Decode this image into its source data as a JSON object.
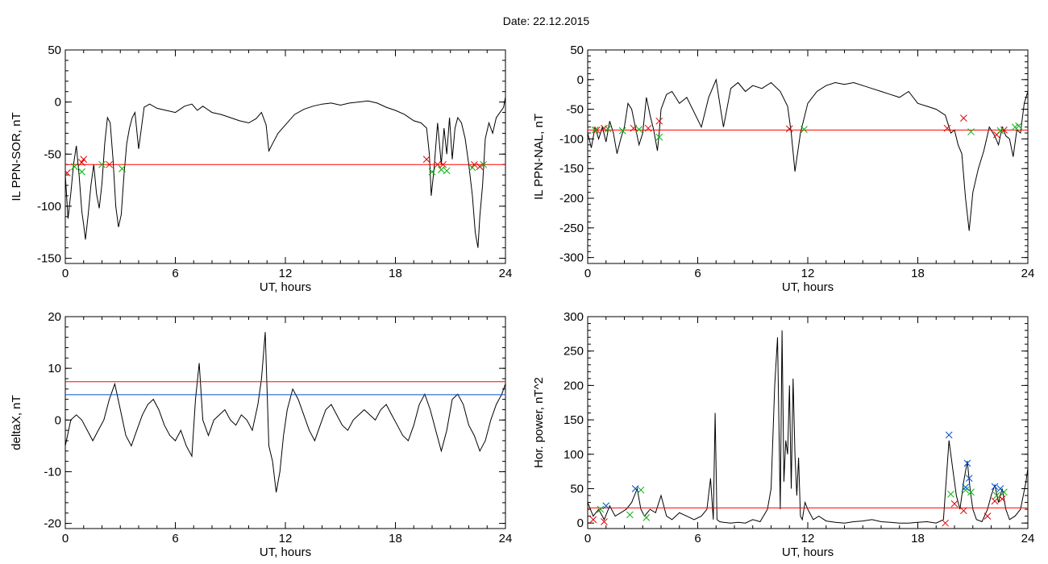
{
  "title": "Date:  22.12.2015",
  "colors": {
    "trace": "#000000",
    "threshold": "#ff0000",
    "secondary": "#0050d0",
    "cross_red": "#e00000",
    "cross_green": "#00b000",
    "cross_blue": "#0050d0"
  },
  "chart_data": [
    {
      "type": "line",
      "ylabel": "IL PPN-SOR, nT",
      "xlabel": "UT, hours",
      "xlim": [
        0,
        24
      ],
      "ylim": [
        -155,
        50
      ],
      "xticks": [
        0,
        6,
        12,
        18,
        24
      ],
      "yticks": [
        50,
        0,
        -50,
        -100,
        -150
      ],
      "series": [
        {
          "role": "trace",
          "x": [
            0,
            0.15,
            0.3,
            0.45,
            0.6,
            0.75,
            0.9,
            1.0,
            1.1,
            1.25,
            1.4,
            1.55,
            1.7,
            1.85,
            2.0,
            2.15,
            2.3,
            2.45,
            2.6,
            2.75,
            2.9,
            3.05,
            3.2,
            3.35,
            3.5,
            3.65,
            3.8,
            4.0,
            4.3,
            4.6,
            5.0,
            5.5,
            6.0,
            6.5,
            6.9,
            7.2,
            7.5,
            8.0,
            8.5,
            9.0,
            9.5,
            10.0,
            10.4,
            10.7,
            10.95,
            11.1,
            11.3,
            11.6,
            12.0,
            12.5,
            13.0,
            13.5,
            14.0,
            14.5,
            15.0,
            15.5,
            16.0,
            16.5,
            17.0,
            17.5,
            18.0,
            18.5,
            19.0,
            19.4,
            19.7,
            19.85,
            19.95,
            20.1,
            20.3,
            20.5,
            20.65,
            20.8,
            20.95,
            21.1,
            21.25,
            21.4,
            21.6,
            21.8,
            22.0,
            22.2,
            22.35,
            22.5,
            22.6,
            22.75,
            22.9,
            23.1,
            23.3,
            23.5,
            23.7,
            23.9,
            24.0
          ],
          "y": [
            -70,
            -112,
            -88,
            -60,
            -42,
            -70,
            -105,
            -118,
            -132,
            -108,
            -80,
            -60,
            -88,
            -102,
            -78,
            -40,
            -15,
            -20,
            -55,
            -100,
            -120,
            -108,
            -70,
            -40,
            -25,
            -15,
            -10,
            -45,
            -5,
            -2,
            -6,
            -8,
            -10,
            -4,
            -2,
            -8,
            -4,
            -10,
            -12,
            -15,
            -18,
            -20,
            -16,
            -10,
            -22,
            -47,
            -40,
            -30,
            -22,
            -12,
            -7,
            -4,
            -2,
            -1,
            -3,
            -1,
            0,
            1,
            -1,
            -5,
            -8,
            -12,
            -18,
            -20,
            -25,
            -50,
            -90,
            -65,
            -20,
            -60,
            -25,
            -50,
            -15,
            -55,
            -25,
            -15,
            -20,
            -35,
            -60,
            -90,
            -125,
            -140,
            -110,
            -80,
            -35,
            -20,
            -30,
            -15,
            -10,
            -5,
            5
          ]
        },
        {
          "role": "threshold",
          "x": [
            0,
            24
          ],
          "y": [
            -60,
            -60
          ]
        }
      ],
      "markers": {
        "red_x": [
          [
            0.1,
            -68
          ],
          [
            0.9,
            -58
          ],
          [
            1.0,
            -55
          ],
          [
            2.4,
            -60
          ],
          [
            19.7,
            -55
          ],
          [
            20.3,
            -60
          ],
          [
            20.6,
            -60
          ],
          [
            22.3,
            -60
          ],
          [
            22.6,
            -62
          ]
        ],
        "green_x": [
          [
            0.5,
            -62
          ],
          [
            0.9,
            -67
          ],
          [
            2.0,
            -60
          ],
          [
            3.1,
            -64
          ],
          [
            20.0,
            -67
          ],
          [
            20.5,
            -65
          ],
          [
            20.8,
            -66
          ],
          [
            22.2,
            -63
          ],
          [
            22.8,
            -60
          ]
        ]
      }
    },
    {
      "type": "line",
      "ylabel": "IL PPN-NAL, nT",
      "xlabel": "UT, hours",
      "xlim": [
        0,
        24
      ],
      "ylim": [
        -310,
        50
      ],
      "xticks": [
        0,
        6,
        12,
        18,
        24
      ],
      "yticks": [
        50,
        0,
        -50,
        -100,
        -150,
        -200,
        -250,
        -300
      ],
      "series": [
        {
          "role": "trace",
          "x": [
            0,
            0.2,
            0.4,
            0.6,
            0.8,
            1.0,
            1.2,
            1.4,
            1.6,
            1.8,
            2.0,
            2.2,
            2.4,
            2.6,
            2.8,
            3.0,
            3.2,
            3.4,
            3.6,
            3.8,
            3.9,
            4.0,
            4.3,
            4.6,
            5.0,
            5.4,
            5.8,
            6.2,
            6.6,
            7.0,
            7.2,
            7.4,
            7.8,
            8.2,
            8.6,
            9.0,
            9.5,
            10.0,
            10.5,
            10.9,
            11.1,
            11.3,
            11.6,
            12.0,
            12.5,
            13.0,
            13.5,
            14.0,
            14.5,
            15.0,
            15.5,
            16.0,
            16.5,
            17.0,
            17.5,
            18.0,
            18.5,
            19.0,
            19.5,
            19.8,
            20.0,
            20.2,
            20.4,
            20.6,
            20.8,
            21.0,
            21.3,
            21.6,
            21.9,
            22.2,
            22.4,
            22.6,
            22.8,
            23.0,
            23.2,
            23.4,
            23.6,
            23.8,
            24.0
          ],
          "y": [
            -90,
            -115,
            -80,
            -100,
            -80,
            -105,
            -70,
            -90,
            -125,
            -100,
            -80,
            -40,
            -50,
            -80,
            -110,
            -90,
            -30,
            -60,
            -85,
            -120,
            -90,
            -50,
            -25,
            -20,
            -40,
            -30,
            -55,
            -80,
            -30,
            0,
            -40,
            -80,
            -15,
            -5,
            -20,
            -10,
            -15,
            -5,
            -20,
            -45,
            -90,
            -155,
            -90,
            -40,
            -20,
            -10,
            -5,
            -8,
            -5,
            -10,
            -15,
            -20,
            -25,
            -30,
            -20,
            -40,
            -45,
            -50,
            -60,
            -90,
            -85,
            -110,
            -125,
            -200,
            -255,
            -190,
            -150,
            -120,
            -80,
            -95,
            -110,
            -80,
            -95,
            -100,
            -130,
            -85,
            -90,
            -40,
            -20
          ]
        },
        {
          "role": "threshold",
          "x": [
            0,
            24
          ],
          "y": [
            -85,
            -85
          ]
        }
      ],
      "markers": {
        "red_x": [
          [
            0.5,
            -85
          ],
          [
            0.9,
            -82
          ],
          [
            2.5,
            -82
          ],
          [
            3.3,
            -82
          ],
          [
            3.9,
            -70
          ],
          [
            11.0,
            -83
          ],
          [
            19.6,
            -82
          ],
          [
            20.5,
            -65
          ],
          [
            22.3,
            -93
          ],
          [
            22.7,
            -85
          ]
        ],
        "green_x": [
          [
            0.4,
            -85
          ],
          [
            1.1,
            -83
          ],
          [
            1.9,
            -86
          ],
          [
            2.8,
            -84
          ],
          [
            3.9,
            -97
          ],
          [
            11.8,
            -84
          ],
          [
            20.9,
            -88
          ],
          [
            22.5,
            -86
          ],
          [
            23.3,
            -80
          ],
          [
            23.5,
            -78
          ]
        ]
      }
    },
    {
      "type": "line",
      "ylabel": "deltaX, nT",
      "xlabel": "UT, hours",
      "xlim": [
        0,
        24
      ],
      "ylim": [
        -21,
        20
      ],
      "xticks": [
        0,
        6,
        12,
        18,
        24
      ],
      "yticks": [
        20,
        10,
        0,
        -10,
        -20
      ],
      "series": [
        {
          "role": "trace",
          "x": [
            0,
            0.3,
            0.6,
            0.9,
            1.2,
            1.5,
            1.8,
            2.1,
            2.4,
            2.7,
            3.0,
            3.3,
            3.6,
            3.9,
            4.2,
            4.5,
            4.8,
            5.1,
            5.4,
            5.7,
            6.0,
            6.3,
            6.6,
            6.9,
            7.1,
            7.3,
            7.5,
            7.8,
            8.1,
            8.4,
            8.7,
            9.0,
            9.3,
            9.6,
            9.9,
            10.2,
            10.5,
            10.7,
            10.9,
            11.1,
            11.3,
            11.5,
            11.7,
            11.9,
            12.1,
            12.4,
            12.7,
            13.0,
            13.3,
            13.6,
            13.9,
            14.2,
            14.5,
            14.8,
            15.1,
            15.4,
            15.7,
            16.0,
            16.3,
            16.6,
            16.9,
            17.2,
            17.5,
            17.8,
            18.1,
            18.4,
            18.7,
            19.0,
            19.3,
            19.6,
            19.9,
            20.2,
            20.5,
            20.8,
            21.1,
            21.4,
            21.7,
            22.0,
            22.3,
            22.6,
            22.9,
            23.2,
            23.5,
            23.8,
            24.0
          ],
          "y": [
            -5,
            0,
            1,
            0,
            -2,
            -4,
            -2,
            0,
            4,
            7,
            2,
            -3,
            -5,
            -2,
            1,
            3,
            4,
            2,
            -1,
            -3,
            -4,
            -2,
            -5,
            -7,
            4,
            11,
            0,
            -3,
            0,
            1,
            2,
            0,
            -1,
            1,
            0,
            -2,
            3,
            8,
            17,
            -5,
            -8,
            -14,
            -10,
            -3,
            2,
            6,
            4,
            1,
            -2,
            -4,
            -1,
            2,
            3,
            1,
            -1,
            -2,
            0,
            1,
            2,
            1,
            0,
            2,
            3,
            1,
            -1,
            -3,
            -4,
            -1,
            3,
            5,
            2,
            -2,
            -6,
            -2,
            4,
            5,
            3,
            -1,
            -3,
            -6,
            -4,
            0,
            3,
            5,
            7
          ]
        },
        {
          "role": "threshold",
          "x": [
            0,
            24
          ],
          "y": [
            7.4,
            7.4
          ]
        },
        {
          "role": "secondary",
          "x": [
            0,
            24
          ],
          "y": [
            4.9,
            4.9
          ]
        }
      ]
    },
    {
      "type": "line",
      "ylabel": "Hor. power, nT^2",
      "xlabel": "UT, hours",
      "xlim": [
        0,
        24
      ],
      "ylim": [
        -8,
        300
      ],
      "xticks": [
        0,
        6,
        12,
        18,
        24
      ],
      "yticks": [
        300,
        250,
        200,
        150,
        100,
        50,
        0
      ],
      "series": [
        {
          "role": "trace",
          "x": [
            0,
            0.3,
            0.6,
            0.9,
            1.2,
            1.5,
            1.8,
            2.1,
            2.4,
            2.7,
            2.9,
            3.1,
            3.4,
            3.7,
            4.0,
            4.3,
            4.6,
            5.0,
            5.4,
            5.8,
            6.2,
            6.5,
            6.7,
            6.85,
            6.95,
            7.05,
            7.2,
            7.4,
            7.8,
            8.2,
            8.6,
            9.0,
            9.4,
            9.8,
            10.0,
            10.2,
            10.35,
            10.5,
            10.6,
            10.7,
            10.8,
            10.9,
            11.0,
            11.1,
            11.2,
            11.3,
            11.4,
            11.5,
            11.6,
            11.7,
            11.85,
            12.0,
            12.3,
            12.6,
            13.0,
            13.5,
            14.0,
            14.5,
            15.0,
            15.5,
            16.0,
            16.5,
            17.0,
            17.5,
            18.0,
            18.5,
            19.0,
            19.4,
            19.7,
            19.9,
            20.1,
            20.3,
            20.5,
            20.7,
            20.85,
            21.0,
            21.2,
            21.5,
            21.8,
            22.0,
            22.2,
            22.4,
            22.6,
            22.8,
            23.0,
            23.3,
            23.6,
            23.9,
            24.0
          ],
          "y": [
            30,
            10,
            20,
            5,
            25,
            10,
            15,
            20,
            30,
            50,
            20,
            10,
            20,
            15,
            40,
            10,
            5,
            15,
            10,
            5,
            10,
            20,
            65,
            5,
            160,
            5,
            2,
            1,
            0,
            1,
            0,
            5,
            2,
            20,
            50,
            200,
            270,
            20,
            280,
            60,
            120,
            100,
            200,
            50,
            210,
            100,
            40,
            95,
            10,
            5,
            30,
            20,
            5,
            10,
            3,
            1,
            0,
            2,
            3,
            5,
            2,
            1,
            0,
            0,
            1,
            2,
            0,
            5,
            120,
            80,
            40,
            20,
            60,
            90,
            50,
            20,
            5,
            2,
            20,
            40,
            55,
            30,
            50,
            20,
            5,
            10,
            20,
            60,
            80
          ]
        },
        {
          "role": "threshold",
          "x": [
            0,
            24
          ],
          "y": [
            22,
            22
          ]
        }
      ],
      "markers": {
        "red_x": [
          [
            0.3,
            5
          ],
          [
            0.9,
            2
          ],
          [
            19.5,
            0
          ],
          [
            20.0,
            28
          ],
          [
            20.5,
            18
          ],
          [
            21.8,
            10
          ],
          [
            22.2,
            32
          ],
          [
            22.6,
            35
          ]
        ],
        "green_x": [
          [
            0.7,
            20
          ],
          [
            1.0,
            25
          ],
          [
            2.3,
            12
          ],
          [
            2.9,
            48
          ],
          [
            3.2,
            8
          ],
          [
            19.8,
            42
          ],
          [
            20.6,
            48
          ],
          [
            20.9,
            45
          ],
          [
            22.3,
            40
          ],
          [
            22.7,
            45
          ]
        ],
        "blue_x": [
          [
            1.0,
            25
          ],
          [
            2.6,
            50
          ],
          [
            19.7,
            128
          ],
          [
            20.7,
            87
          ],
          [
            20.8,
            65
          ],
          [
            20.6,
            52
          ],
          [
            22.2,
            53
          ],
          [
            22.5,
            50
          ]
        ]
      }
    }
  ]
}
